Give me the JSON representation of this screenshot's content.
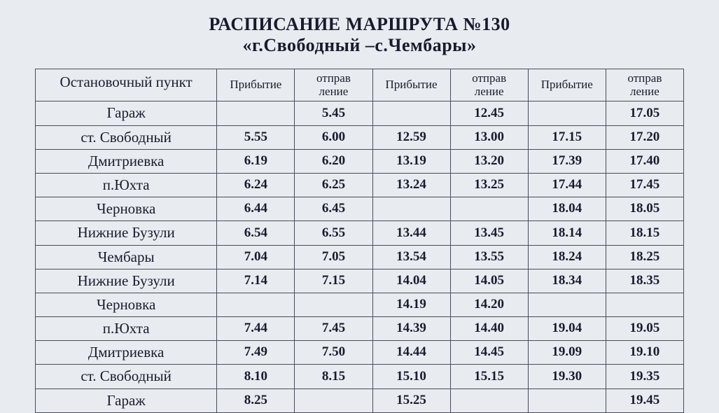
{
  "title": {
    "line1": "РАСПИСАНИЕ МАРШРУТА №130",
    "line2": "«г.Свободный –с.Чембары»"
  },
  "table": {
    "columns": [
      "Остановочный пункт",
      "Прибытие",
      "отправ\nление",
      "Прибытие",
      "отправ\nление",
      "Прибытие",
      "отправ\nление"
    ],
    "column_header_fontsize": 19,
    "stop_header_fontsize": 21,
    "cell_fontsize": 19,
    "stop_fontsize": 21,
    "border_color": "#4a4a5a",
    "background_color": "#e8ecf0",
    "text_color": "#1a1a2e",
    "column_widths_pct": [
      28,
      12,
      12,
      12,
      12,
      12,
      12
    ],
    "rows": [
      {
        "stop": "Гараж",
        "times": [
          "",
          "5.45",
          "",
          "12.45",
          "",
          "17.05"
        ]
      },
      {
        "stop": "ст. Свободный",
        "times": [
          "5.55",
          "6.00",
          "12.59",
          "13.00",
          "17.15",
          "17.20"
        ]
      },
      {
        "stop": "Дмитриевка",
        "times": [
          "6.19",
          "6.20",
          "13.19",
          "13.20",
          "17.39",
          "17.40"
        ]
      },
      {
        "stop": "п.Юхта",
        "times": [
          "6.24",
          "6.25",
          "13.24",
          "13.25",
          "17.44",
          "17.45"
        ]
      },
      {
        "stop": "Черновка",
        "times": [
          "6.44",
          "6.45",
          "",
          "",
          "18.04",
          "18.05"
        ]
      },
      {
        "stop": "Нижние Бузули",
        "times": [
          "6.54",
          "6.55",
          "13.44",
          "13.45",
          "18.14",
          "18.15"
        ]
      },
      {
        "stop": "Чембары",
        "times": [
          "7.04",
          "7.05",
          "13.54",
          "13.55",
          "18.24",
          "18.25"
        ]
      },
      {
        "stop": "Нижние Бузули",
        "times": [
          "7.14",
          "7.15",
          "14.04",
          "14.05",
          "18.34",
          "18.35"
        ]
      },
      {
        "stop": "Черновка",
        "times": [
          "",
          "",
          "14.19",
          "14.20",
          "",
          ""
        ]
      },
      {
        "stop": "п.Юхта",
        "times": [
          "7.44",
          "7.45",
          "14.39",
          "14.40",
          "19.04",
          "19.05"
        ]
      },
      {
        "stop": "Дмитриевка",
        "times": [
          "7.49",
          "7.50",
          "14.44",
          "14.45",
          "19.09",
          "19.10"
        ]
      },
      {
        "stop": "ст. Свободный",
        "times": [
          "8.10",
          "8.15",
          "15.10",
          "15.15",
          "19.30",
          "19.35"
        ]
      },
      {
        "stop": "Гараж",
        "times": [
          "8.25",
          "",
          "15.25",
          "",
          "",
          "19.45"
        ]
      }
    ]
  }
}
